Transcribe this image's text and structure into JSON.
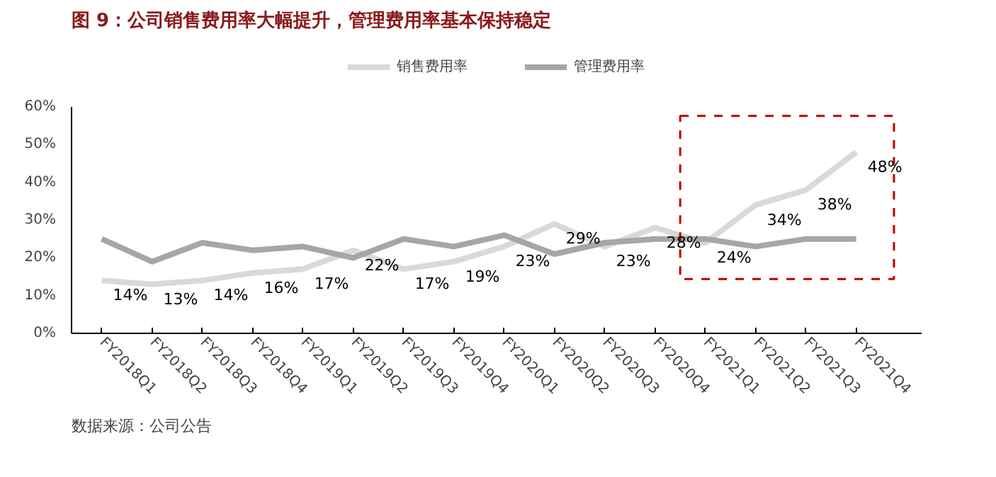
{
  "chart_data": {
    "type": "line",
    "title": "图 9：公司销售费用率大幅提升，管理费用率基本保持稳定",
    "categories": [
      "FY2018Q1",
      "FY2018Q2",
      "FY2018Q3",
      "FY2018Q4",
      "FY2019Q1",
      "FY2019Q2",
      "FY2019Q3",
      "FY2019Q4",
      "FY2020Q1",
      "FY2020Q2",
      "FY2020Q3",
      "FY2020Q4",
      "FY2021Q1",
      "FY2021Q2",
      "FY2021Q3",
      "FY2021Q4"
    ],
    "series": [
      {
        "name": "销售费用率",
        "color": "#d9d9d9",
        "values": [
          14,
          13,
          14,
          16,
          17,
          22,
          17,
          19,
          23,
          29,
          23,
          28,
          24,
          34,
          38,
          48
        ],
        "value_labels": [
          "14%",
          "13%",
          "14%",
          "16%",
          "17%",
          "22%",
          "17%",
          "19%",
          "23%",
          "29%",
          "23%",
          "28%",
          "24%",
          "34%",
          "38%",
          "48%"
        ]
      },
      {
        "name": "管理费用率",
        "color": "#a6a6a6",
        "values": [
          25,
          19,
          24,
          22,
          23,
          20,
          25,
          23,
          26,
          21,
          24,
          25,
          25,
          23,
          25,
          25
        ]
      }
    ],
    "ylim": [
      0,
      60
    ],
    "yticks": [
      {
        "value": 0,
        "label": "0%"
      },
      {
        "value": 10,
        "label": "10%"
      },
      {
        "value": 20,
        "label": "20%"
      },
      {
        "value": 30,
        "label": "30%"
      },
      {
        "value": 40,
        "label": "40%"
      },
      {
        "value": 50,
        "label": "50%"
      },
      {
        "value": 60,
        "label": "60%"
      }
    ],
    "legend": "top",
    "grid": false,
    "marker": "none",
    "line_style": "solid",
    "annotations": [
      "数据来源：公司公告"
    ]
  }
}
